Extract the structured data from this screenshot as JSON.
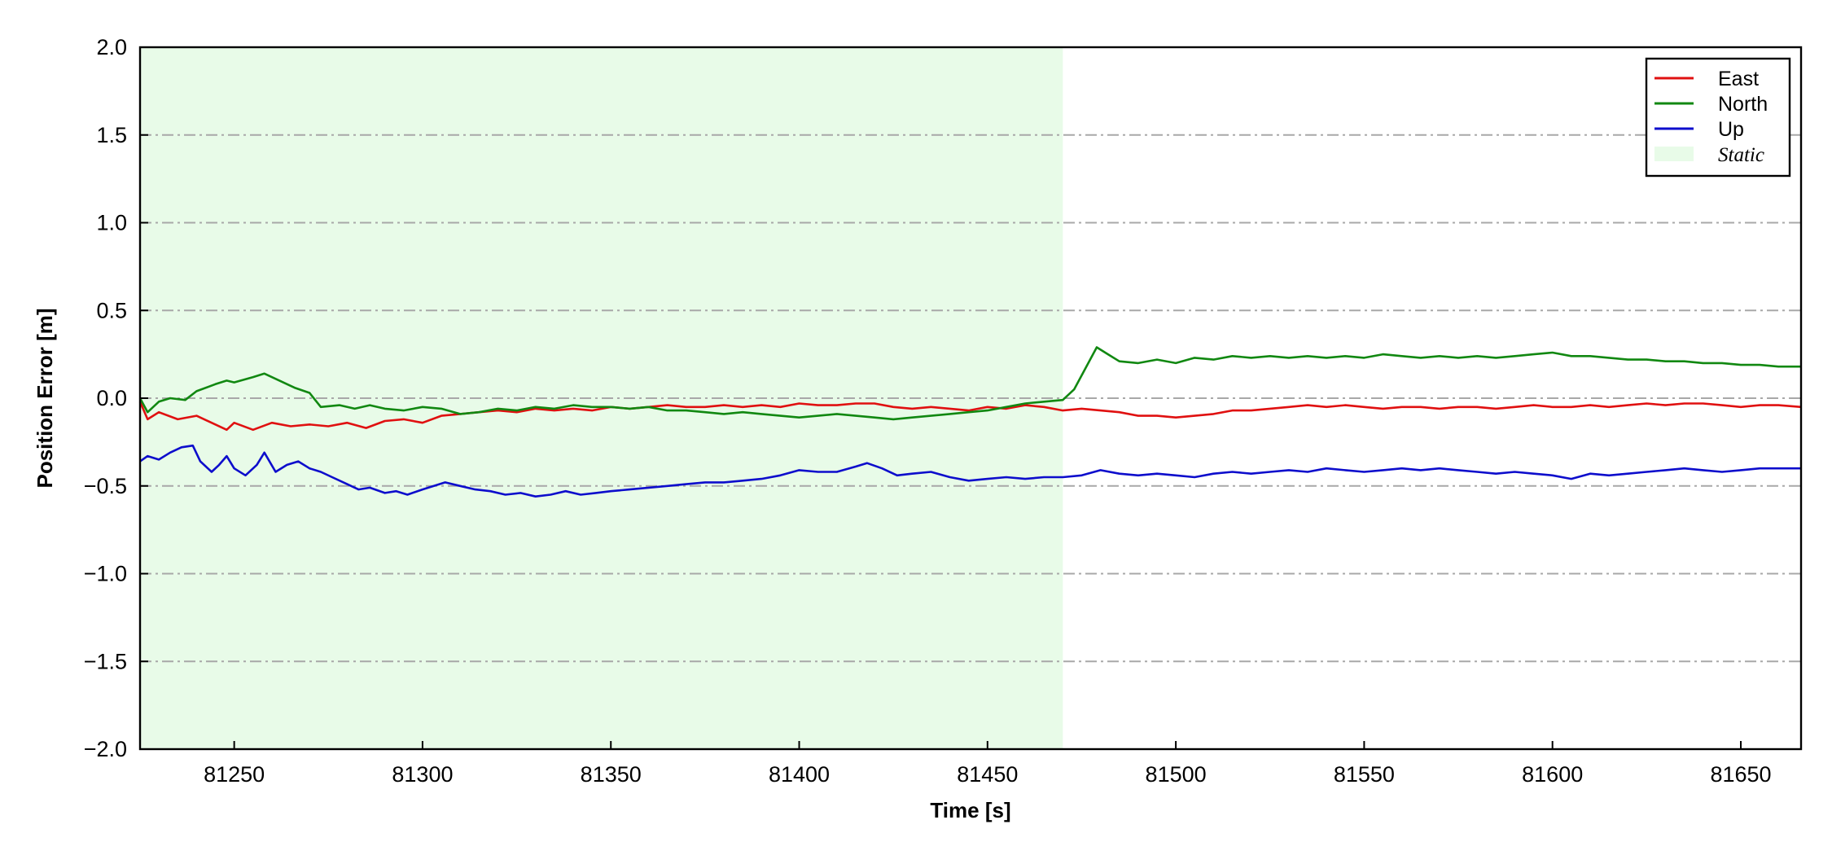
{
  "chart_data": {
    "type": "line",
    "title": "",
    "xlabel": "Time [s]",
    "ylabel": "Position Error [m]",
    "xlim": [
      81225,
      81666
    ],
    "ylim": [
      -2.0,
      2.0
    ],
    "x_ticks": [
      81250,
      81300,
      81350,
      81400,
      81450,
      81500,
      81550,
      81600,
      81650
    ],
    "x_tick_labels": [
      "81250",
      "81300",
      "81350",
      "81400",
      "81450",
      "81500",
      "81550",
      "81600",
      "81650"
    ],
    "y_ticks": [
      2.0,
      1.5,
      1.0,
      0.5,
      0.0,
      -0.5,
      -1.0,
      -1.5,
      -2.0
    ],
    "y_tick_labels": [
      "2.0",
      "1.5",
      "1.0",
      "0.5",
      "0.0",
      "−0.5",
      "−1.0",
      "−1.5",
      "−2.0"
    ],
    "grid": "horizontal dash-dot",
    "legend_position": "top-right",
    "shaded_regions": [
      {
        "name": "Static",
        "x_start": 81225,
        "x_end": 81470,
        "color": "#e8fbe8"
      }
    ],
    "series": [
      {
        "name": "East",
        "color": "#e01010",
        "points": [
          [
            81225,
            -0.02
          ],
          [
            81227,
            -0.12
          ],
          [
            81230,
            -0.08
          ],
          [
            81235,
            -0.12
          ],
          [
            81240,
            -0.1
          ],
          [
            81245,
            -0.15
          ],
          [
            81248,
            -0.18
          ],
          [
            81250,
            -0.14
          ],
          [
            81255,
            -0.18
          ],
          [
            81260,
            -0.14
          ],
          [
            81265,
            -0.16
          ],
          [
            81270,
            -0.15
          ],
          [
            81275,
            -0.16
          ],
          [
            81280,
            -0.14
          ],
          [
            81285,
            -0.17
          ],
          [
            81290,
            -0.13
          ],
          [
            81295,
            -0.12
          ],
          [
            81300,
            -0.14
          ],
          [
            81305,
            -0.1
          ],
          [
            81310,
            -0.09
          ],
          [
            81315,
            -0.08
          ],
          [
            81320,
            -0.07
          ],
          [
            81325,
            -0.08
          ],
          [
            81330,
            -0.06
          ],
          [
            81335,
            -0.07
          ],
          [
            81340,
            -0.06
          ],
          [
            81345,
            -0.07
          ],
          [
            81350,
            -0.05
          ],
          [
            81355,
            -0.06
          ],
          [
            81360,
            -0.05
          ],
          [
            81365,
            -0.04
          ],
          [
            81370,
            -0.05
          ],
          [
            81375,
            -0.05
          ],
          [
            81380,
            -0.04
          ],
          [
            81385,
            -0.05
          ],
          [
            81390,
            -0.04
          ],
          [
            81395,
            -0.05
          ],
          [
            81400,
            -0.03
          ],
          [
            81405,
            -0.04
          ],
          [
            81410,
            -0.04
          ],
          [
            81415,
            -0.03
          ],
          [
            81420,
            -0.03
          ],
          [
            81425,
            -0.05
          ],
          [
            81430,
            -0.06
          ],
          [
            81435,
            -0.05
          ],
          [
            81440,
            -0.06
          ],
          [
            81445,
            -0.07
          ],
          [
            81450,
            -0.05
          ],
          [
            81455,
            -0.06
          ],
          [
            81460,
            -0.04
          ],
          [
            81465,
            -0.05
          ],
          [
            81470,
            -0.07
          ],
          [
            81475,
            -0.06
          ],
          [
            81480,
            -0.07
          ],
          [
            81485,
            -0.08
          ],
          [
            81490,
            -0.1
          ],
          [
            81495,
            -0.1
          ],
          [
            81500,
            -0.11
          ],
          [
            81505,
            -0.1
          ],
          [
            81510,
            -0.09
          ],
          [
            81515,
            -0.07
          ],
          [
            81520,
            -0.07
          ],
          [
            81525,
            -0.06
          ],
          [
            81530,
            -0.05
          ],
          [
            81535,
            -0.04
          ],
          [
            81540,
            -0.05
          ],
          [
            81545,
            -0.04
          ],
          [
            81550,
            -0.05
          ],
          [
            81555,
            -0.06
          ],
          [
            81560,
            -0.05
          ],
          [
            81565,
            -0.05
          ],
          [
            81570,
            -0.06
          ],
          [
            81575,
            -0.05
          ],
          [
            81580,
            -0.05
          ],
          [
            81585,
            -0.06
          ],
          [
            81590,
            -0.05
          ],
          [
            81595,
            -0.04
          ],
          [
            81600,
            -0.05
          ],
          [
            81605,
            -0.05
          ],
          [
            81610,
            -0.04
          ],
          [
            81615,
            -0.05
          ],
          [
            81620,
            -0.04
          ],
          [
            81625,
            -0.03
          ],
          [
            81630,
            -0.04
          ],
          [
            81635,
            -0.03
          ],
          [
            81640,
            -0.03
          ],
          [
            81645,
            -0.04
          ],
          [
            81650,
            -0.05
          ],
          [
            81655,
            -0.04
          ],
          [
            81660,
            -0.04
          ],
          [
            81666,
            -0.05
          ]
        ]
      },
      {
        "name": "North",
        "color": "#118811",
        "points": [
          [
            81225,
            0.0
          ],
          [
            81227,
            -0.08
          ],
          [
            81230,
            -0.02
          ],
          [
            81233,
            0.0
          ],
          [
            81237,
            -0.01
          ],
          [
            81240,
            0.04
          ],
          [
            81245,
            0.08
          ],
          [
            81248,
            0.1
          ],
          [
            81250,
            0.09
          ],
          [
            81255,
            0.12
          ],
          [
            81258,
            0.14
          ],
          [
            81262,
            0.1
          ],
          [
            81266,
            0.06
          ],
          [
            81270,
            0.03
          ],
          [
            81273,
            -0.05
          ],
          [
            81278,
            -0.04
          ],
          [
            81282,
            -0.06
          ],
          [
            81286,
            -0.04
          ],
          [
            81290,
            -0.06
          ],
          [
            81295,
            -0.07
          ],
          [
            81300,
            -0.05
          ],
          [
            81305,
            -0.06
          ],
          [
            81310,
            -0.09
          ],
          [
            81315,
            -0.08
          ],
          [
            81320,
            -0.06
          ],
          [
            81325,
            -0.07
          ],
          [
            81330,
            -0.05
          ],
          [
            81335,
            -0.06
          ],
          [
            81340,
            -0.04
          ],
          [
            81345,
            -0.05
          ],
          [
            81350,
            -0.05
          ],
          [
            81355,
            -0.06
          ],
          [
            81360,
            -0.05
          ],
          [
            81365,
            -0.07
          ],
          [
            81370,
            -0.07
          ],
          [
            81375,
            -0.08
          ],
          [
            81380,
            -0.09
          ],
          [
            81385,
            -0.08
          ],
          [
            81390,
            -0.09
          ],
          [
            81395,
            -0.1
          ],
          [
            81400,
            -0.11
          ],
          [
            81405,
            -0.1
          ],
          [
            81410,
            -0.09
          ],
          [
            81415,
            -0.1
          ],
          [
            81420,
            -0.11
          ],
          [
            81425,
            -0.12
          ],
          [
            81430,
            -0.11
          ],
          [
            81435,
            -0.1
          ],
          [
            81440,
            -0.09
          ],
          [
            81445,
            -0.08
          ],
          [
            81450,
            -0.07
          ],
          [
            81455,
            -0.05
          ],
          [
            81460,
            -0.03
          ],
          [
            81465,
            -0.02
          ],
          [
            81470,
            -0.01
          ],
          [
            81473,
            0.05
          ],
          [
            81476,
            0.17
          ],
          [
            81479,
            0.29
          ],
          [
            81482,
            0.25
          ],
          [
            81485,
            0.21
          ],
          [
            81490,
            0.2
          ],
          [
            81495,
            0.22
          ],
          [
            81500,
            0.2
          ],
          [
            81505,
            0.23
          ],
          [
            81510,
            0.22
          ],
          [
            81515,
            0.24
          ],
          [
            81520,
            0.23
          ],
          [
            81525,
            0.24
          ],
          [
            81530,
            0.23
          ],
          [
            81535,
            0.24
          ],
          [
            81540,
            0.23
          ],
          [
            81545,
            0.24
          ],
          [
            81550,
            0.23
          ],
          [
            81555,
            0.25
          ],
          [
            81560,
            0.24
          ],
          [
            81565,
            0.23
          ],
          [
            81570,
            0.24
          ],
          [
            81575,
            0.23
          ],
          [
            81580,
            0.24
          ],
          [
            81585,
            0.23
          ],
          [
            81590,
            0.24
          ],
          [
            81595,
            0.25
          ],
          [
            81600,
            0.26
          ],
          [
            81605,
            0.24
          ],
          [
            81610,
            0.24
          ],
          [
            81615,
            0.23
          ],
          [
            81620,
            0.22
          ],
          [
            81625,
            0.22
          ],
          [
            81630,
            0.21
          ],
          [
            81635,
            0.21
          ],
          [
            81640,
            0.2
          ],
          [
            81645,
            0.2
          ],
          [
            81650,
            0.19
          ],
          [
            81655,
            0.19
          ],
          [
            81660,
            0.18
          ],
          [
            81666,
            0.18
          ]
        ]
      },
      {
        "name": "Up",
        "color": "#0d0dcc",
        "points": [
          [
            81225,
            -0.36
          ],
          [
            81227,
            -0.33
          ],
          [
            81230,
            -0.35
          ],
          [
            81233,
            -0.31
          ],
          [
            81236,
            -0.28
          ],
          [
            81239,
            -0.27
          ],
          [
            81241,
            -0.36
          ],
          [
            81244,
            -0.42
          ],
          [
            81246,
            -0.38
          ],
          [
            81248,
            -0.33
          ],
          [
            81250,
            -0.4
          ],
          [
            81253,
            -0.44
          ],
          [
            81256,
            -0.38
          ],
          [
            81258,
            -0.31
          ],
          [
            81261,
            -0.42
          ],
          [
            81264,
            -0.38
          ],
          [
            81267,
            -0.36
          ],
          [
            81270,
            -0.4
          ],
          [
            81273,
            -0.42
          ],
          [
            81276,
            -0.45
          ],
          [
            81280,
            -0.49
          ],
          [
            81283,
            -0.52
          ],
          [
            81286,
            -0.51
          ],
          [
            81290,
            -0.54
          ],
          [
            81293,
            -0.53
          ],
          [
            81296,
            -0.55
          ],
          [
            81300,
            -0.52
          ],
          [
            81303,
            -0.5
          ],
          [
            81306,
            -0.48
          ],
          [
            81310,
            -0.5
          ],
          [
            81314,
            -0.52
          ],
          [
            81318,
            -0.53
          ],
          [
            81322,
            -0.55
          ],
          [
            81326,
            -0.54
          ],
          [
            81330,
            -0.56
          ],
          [
            81334,
            -0.55
          ],
          [
            81338,
            -0.53
          ],
          [
            81342,
            -0.55
          ],
          [
            81346,
            -0.54
          ],
          [
            81350,
            -0.53
          ],
          [
            81355,
            -0.52
          ],
          [
            81360,
            -0.51
          ],
          [
            81365,
            -0.5
          ],
          [
            81370,
            -0.49
          ],
          [
            81375,
            -0.48
          ],
          [
            81380,
            -0.48
          ],
          [
            81385,
            -0.47
          ],
          [
            81390,
            -0.46
          ],
          [
            81395,
            -0.44
          ],
          [
            81400,
            -0.41
          ],
          [
            81405,
            -0.42
          ],
          [
            81410,
            -0.42
          ],
          [
            81415,
            -0.39
          ],
          [
            81418,
            -0.37
          ],
          [
            81422,
            -0.4
          ],
          [
            81426,
            -0.44
          ],
          [
            81430,
            -0.43
          ],
          [
            81435,
            -0.42
          ],
          [
            81440,
            -0.45
          ],
          [
            81445,
            -0.47
          ],
          [
            81450,
            -0.46
          ],
          [
            81455,
            -0.45
          ],
          [
            81460,
            -0.46
          ],
          [
            81465,
            -0.45
          ],
          [
            81470,
            -0.45
          ],
          [
            81475,
            -0.44
          ],
          [
            81480,
            -0.41
          ],
          [
            81485,
            -0.43
          ],
          [
            81490,
            -0.44
          ],
          [
            81495,
            -0.43
          ],
          [
            81500,
            -0.44
          ],
          [
            81505,
            -0.45
          ],
          [
            81510,
            -0.43
          ],
          [
            81515,
            -0.42
          ],
          [
            81520,
            -0.43
          ],
          [
            81525,
            -0.42
          ],
          [
            81530,
            -0.41
          ],
          [
            81535,
            -0.42
          ],
          [
            81540,
            -0.4
          ],
          [
            81545,
            -0.41
          ],
          [
            81550,
            -0.42
          ],
          [
            81555,
            -0.41
          ],
          [
            81560,
            -0.4
          ],
          [
            81565,
            -0.41
          ],
          [
            81570,
            -0.4
          ],
          [
            81575,
            -0.41
          ],
          [
            81580,
            -0.42
          ],
          [
            81585,
            -0.43
          ],
          [
            81590,
            -0.42
          ],
          [
            81595,
            -0.43
          ],
          [
            81600,
            -0.44
          ],
          [
            81605,
            -0.46
          ],
          [
            81610,
            -0.43
          ],
          [
            81615,
            -0.44
          ],
          [
            81620,
            -0.43
          ],
          [
            81625,
            -0.42
          ],
          [
            81630,
            -0.41
          ],
          [
            81635,
            -0.4
          ],
          [
            81640,
            -0.41
          ],
          [
            81645,
            -0.42
          ],
          [
            81650,
            -0.41
          ],
          [
            81655,
            -0.4
          ],
          [
            81660,
            -0.4
          ],
          [
            81666,
            -0.4
          ]
        ]
      }
    ],
    "legend": [
      {
        "label": "East",
        "kind": "line",
        "color": "#e01010",
        "italic": false
      },
      {
        "label": "North",
        "kind": "line",
        "color": "#118811",
        "italic": false
      },
      {
        "label": "Up",
        "kind": "line",
        "color": "#0d0dcc",
        "italic": false
      },
      {
        "label": "Static",
        "kind": "patch",
        "color": "#e8fbe8",
        "italic": true
      }
    ]
  }
}
